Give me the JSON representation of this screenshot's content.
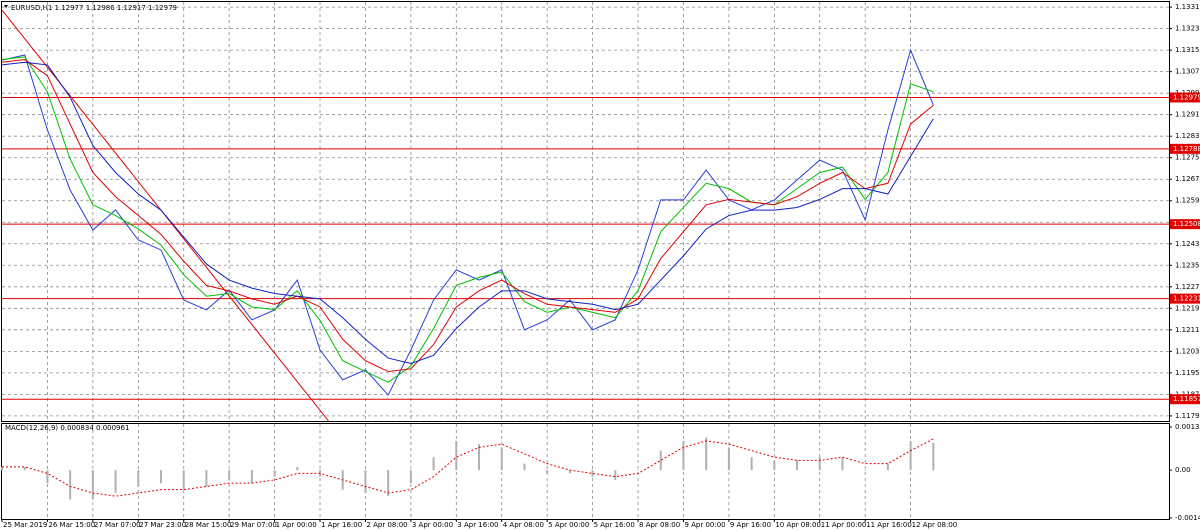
{
  "chart_data": [
    {
      "type": "line",
      "title": "EURUSD,H1  1.12977 1.12986 1.12917 1.12979",
      "x": [
        0,
        8,
        16,
        24,
        32,
        40,
        48,
        56,
        64,
        72,
        80,
        88,
        96,
        104,
        112,
        120,
        128,
        136,
        144,
        152,
        160,
        168,
        176,
        184,
        192,
        200,
        208,
        216,
        224,
        232,
        240,
        248,
        256,
        264,
        272,
        280,
        288,
        296,
        304,
        312,
        320,
        328
      ],
      "xlim": [
        0,
        411
      ],
      "xticks": [
        {
          "value": 0,
          "label": "25 Mar 2019"
        },
        {
          "value": 16,
          "label": "26 Mar 15:00"
        },
        {
          "value": 32,
          "label": "27 Mar 07:00"
        },
        {
          "value": 48,
          "label": "27 Mar 23:00"
        },
        {
          "value": 64,
          "label": "28 Mar 15:00"
        },
        {
          "value": 80,
          "label": "29 Mar 07:00"
        },
        {
          "value": 96,
          "label": "1 Apr 00:00"
        },
        {
          "value": 112,
          "label": "1 Apr 16:00"
        },
        {
          "value": 128,
          "label": "2 Apr 08:00"
        },
        {
          "value": 144,
          "label": "3 Apr 00:00"
        },
        {
          "value": 160,
          "label": "3 Apr 16:00"
        },
        {
          "value": 176,
          "label": "4 Apr 08:00"
        },
        {
          "value": 192,
          "label": "5 Apr 00:00"
        },
        {
          "value": 208,
          "label": "5 Apr 16:00"
        },
        {
          "value": 224,
          "label": "8 Apr 08:00"
        },
        {
          "value": 240,
          "label": "9 Apr 00:00"
        },
        {
          "value": 256,
          "label": "9 Apr 16:00"
        },
        {
          "value": 272,
          "label": "10 Apr 08:00"
        },
        {
          "value": 288,
          "label": "11 Apr 00:00"
        },
        {
          "value": 304,
          "label": "11 Apr 16:00"
        },
        {
          "value": 320,
          "label": "12 Apr 08:00"
        }
      ],
      "ylim": [
        1.11776,
        1.13334
      ],
      "yticks": [
        1.13315,
        1.13235,
        1.13155,
        1.13075,
        1.12995,
        1.12915,
        1.12835,
        1.12755,
        1.12675,
        1.12595,
        1.12515,
        1.12435,
        1.12355,
        1.12275,
        1.12195,
        1.12115,
        1.12035,
        1.11955,
        1.11875,
        1.11795
      ],
      "grid": true,
      "series": [
        {
          "color": "#2b3fd6",
          "values": [
            1.13118,
            1.13137,
            1.12858,
            1.12635,
            1.12486,
            1.12561,
            1.12449,
            1.12412,
            1.12226,
            1.12189,
            1.12263,
            1.12152,
            1.12189,
            1.123,
            1.1204,
            1.11929,
            1.11966,
            1.11873,
            1.1204,
            1.12226,
            1.12338,
            1.123,
            1.12338,
            1.12115,
            1.12152,
            1.12226,
            1.12115,
            1.12152,
            1.12338,
            1.12598,
            1.12598,
            1.12709,
            1.12598,
            1.12561,
            1.12598,
            1.12672,
            1.12746,
            1.12709,
            1.12524,
            1.12858,
            1.13155,
            1.12951
          ]
        },
        {
          "color": "#00c000",
          "values": [
            1.1312,
            1.1313,
            1.13,
            1.1275,
            1.1258,
            1.1254,
            1.1249,
            1.1243,
            1.1232,
            1.1224,
            1.1225,
            1.122,
            1.1219,
            1.1226,
            1.1215,
            1.12,
            1.1196,
            1.1192,
            1.1198,
            1.1212,
            1.1228,
            1.1231,
            1.1233,
            1.1222,
            1.1218,
            1.122,
            1.1218,
            1.1216,
            1.1226,
            1.1248,
            1.1257,
            1.1266,
            1.1264,
            1.1259,
            1.1258,
            1.1264,
            1.127,
            1.1272,
            1.126,
            1.127,
            1.1303,
            1.13
          ]
        },
        {
          "color": "#e00000",
          "values": [
            1.1311,
            1.1312,
            1.1306,
            1.1288,
            1.127,
            1.1261,
            1.1254,
            1.1247,
            1.1237,
            1.1228,
            1.1226,
            1.1223,
            1.1221,
            1.1224,
            1.122,
            1.1208,
            1.12,
            1.1196,
            1.1197,
            1.1206,
            1.122,
            1.1226,
            1.123,
            1.1225,
            1.1221,
            1.122,
            1.1219,
            1.1218,
            1.1223,
            1.1238,
            1.1248,
            1.1258,
            1.126,
            1.1259,
            1.1258,
            1.1261,
            1.1266,
            1.127,
            1.1264,
            1.1266,
            1.1288,
            1.1295
          ]
        },
        {
          "color": "#1020c0",
          "values": [
            1.131,
            1.1311,
            1.131,
            1.1298,
            1.128,
            1.127,
            1.1262,
            1.1256,
            1.1246,
            1.1236,
            1.123,
            1.1227,
            1.1225,
            1.1224,
            1.1223,
            1.1216,
            1.1208,
            1.1201,
            1.1199,
            1.1202,
            1.1212,
            1.122,
            1.1226,
            1.1226,
            1.1223,
            1.1222,
            1.1221,
            1.1219,
            1.1221,
            1.123,
            1.1239,
            1.1249,
            1.1254,
            1.1256,
            1.1256,
            1.1257,
            1.126,
            1.1264,
            1.1264,
            1.1262,
            1.1276,
            1.129
          ]
        }
      ],
      "trendline": {
        "color": "#e00000",
        "x": [
          0,
          115
        ],
        "values": [
          1.13304,
          1.11776
        ]
      },
      "levels": {
        "color": "#e00000",
        "values": [
          1.12979,
          1.12788,
          1.12508,
          1.12231,
          1.11857
        ]
      }
    },
    {
      "type": "bar",
      "title": "MACD(12,26,9) 0.000834 0.000961",
      "x": [
        0,
        8,
        16,
        24,
        32,
        40,
        48,
        56,
        64,
        72,
        80,
        88,
        96,
        104,
        112,
        120,
        128,
        136,
        144,
        152,
        160,
        168,
        176,
        184,
        192,
        200,
        208,
        216,
        224,
        232,
        240,
        248,
        256,
        264,
        272,
        280,
        288,
        296,
        304,
        312,
        320,
        328
      ],
      "xlim": [
        0,
        411
      ],
      "ylim": [
        -0.00147,
        0.001326
      ],
      "yticks": [
        0.001326,
        {
          "value": 0,
          "label": "0.00"
        },
        -0.00147
      ],
      "series": [
        {
          "color": "#b0b0b0",
          "values": [
            0.0001,
            0.0001,
            -0.0004,
            -0.0009,
            -0.0009,
            -0.0007,
            -0.0005,
            -0.0004,
            -0.0006,
            -0.0005,
            -0.0003,
            -0.0004,
            -0.0002,
            0.0001,
            -0.0002,
            -0.0006,
            -0.0007,
            -0.0008,
            -0.0004,
            0.0004,
            0.0009,
            0.0008,
            0.0007,
            0.0002,
            -0.0001,
            -0.0001,
            -0.0002,
            -0.0003,
            0,
            0.0006,
            0.0009,
            0.001,
            0.0007,
            0.0004,
            0.0003,
            0.0003,
            0.0004,
            0.0004,
            0,
            0.0002,
            0.0009,
            0.000834
          ]
        },
        {
          "color": "#e00000",
          "values": [
            0.0001,
            0.0001,
            -0.0001,
            -0.0005,
            -0.0007,
            -0.0008,
            -0.0007,
            -0.0006,
            -0.0006,
            -0.0005,
            -0.0004,
            -0.0004,
            -0.0003,
            -0.0001,
            -0.0001,
            -0.0003,
            -0.0005,
            -0.0007,
            -0.0006,
            -0.0002,
            0.0004,
            0.0007,
            0.0008,
            0.0005,
            0.0002,
            0,
            -0.0001,
            -0.0002,
            -0.0001,
            0.0003,
            0.0007,
            0.0009,
            0.0008,
            0.0006,
            0.0004,
            0.0003,
            0.0003,
            0.0004,
            0.0002,
            0.0002,
            0.0006,
            0.000961
          ]
        }
      ]
    }
  ]
}
